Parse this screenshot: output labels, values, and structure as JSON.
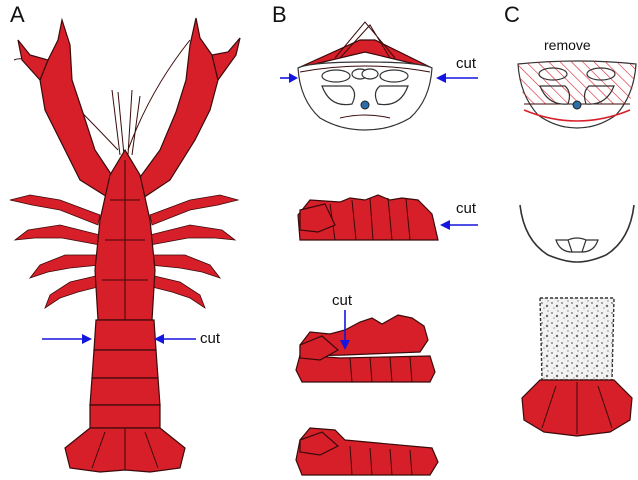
{
  "panels": {
    "a": {
      "letter": "A",
      "cut_label": "cut"
    },
    "b": {
      "letter": "B",
      "cut_label_1": "cut",
      "cut_label_2": "cut",
      "cut_label_3": "cut"
    },
    "c": {
      "letter": "C",
      "remove_label": "remove"
    }
  },
  "colors": {
    "body": "#d71f2a",
    "outline": "#3a0a0a",
    "arrow": "#1515e0",
    "hatch": "#d71f2a"
  }
}
